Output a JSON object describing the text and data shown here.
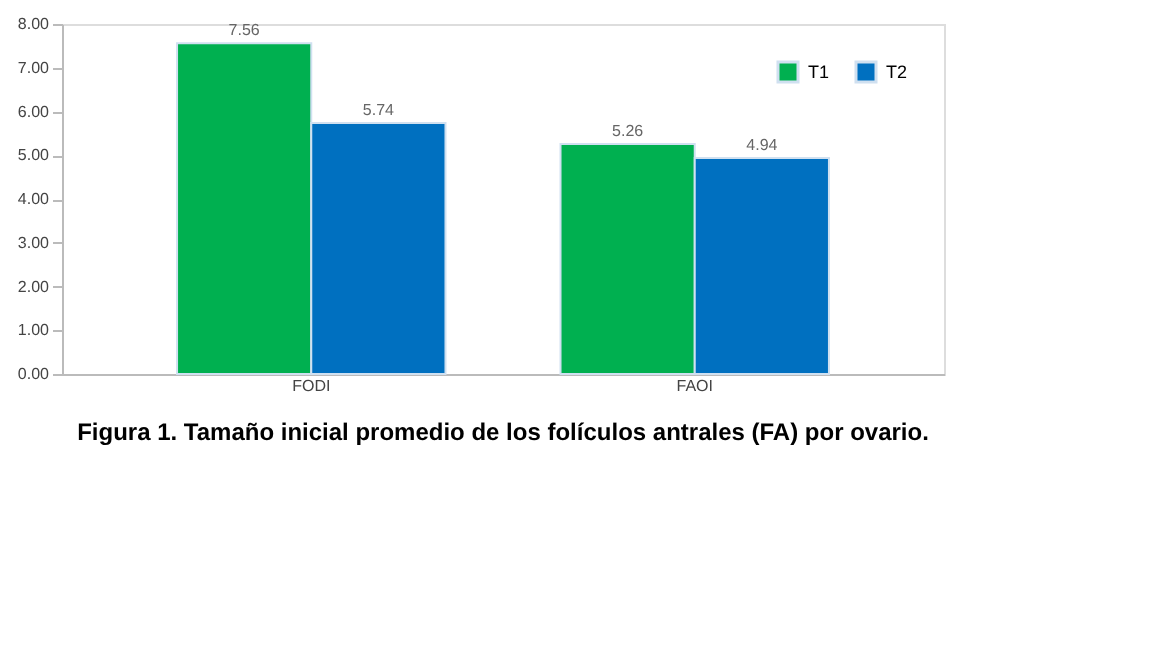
{
  "chart_data": {
    "type": "bar",
    "title": "Figura 1.  Tamaño inicial promedio de los folículos antrales (FA) por ovario.",
    "categories": [
      "FODI",
      "FAOI"
    ],
    "series": [
      {
        "name": "T1",
        "color": "#00b050",
        "values": [
          7.56,
          5.26
        ],
        "value_labels": [
          "7.56",
          "5.26"
        ]
      },
      {
        "name": "T2",
        "color": "#0070c0",
        "values": [
          5.74,
          4.94
        ],
        "value_labels": [
          "5.74",
          "4.94"
        ]
      }
    ],
    "ylim": [
      0,
      8
    ],
    "yticks": [
      {
        "value": 0,
        "label": "0.00"
      },
      {
        "value": 1,
        "label": "1.00"
      },
      {
        "value": 2,
        "label": "2.00"
      },
      {
        "value": 3,
        "label": "3.00"
      },
      {
        "value": 4,
        "label": "4.00"
      },
      {
        "value": 5,
        "label": "5.00"
      },
      {
        "value": 6,
        "label": "6.00"
      },
      {
        "value": 7,
        "label": "7.00"
      },
      {
        "value": 8,
        "label": "8.00"
      }
    ],
    "grid": false,
    "legend": "top right"
  }
}
